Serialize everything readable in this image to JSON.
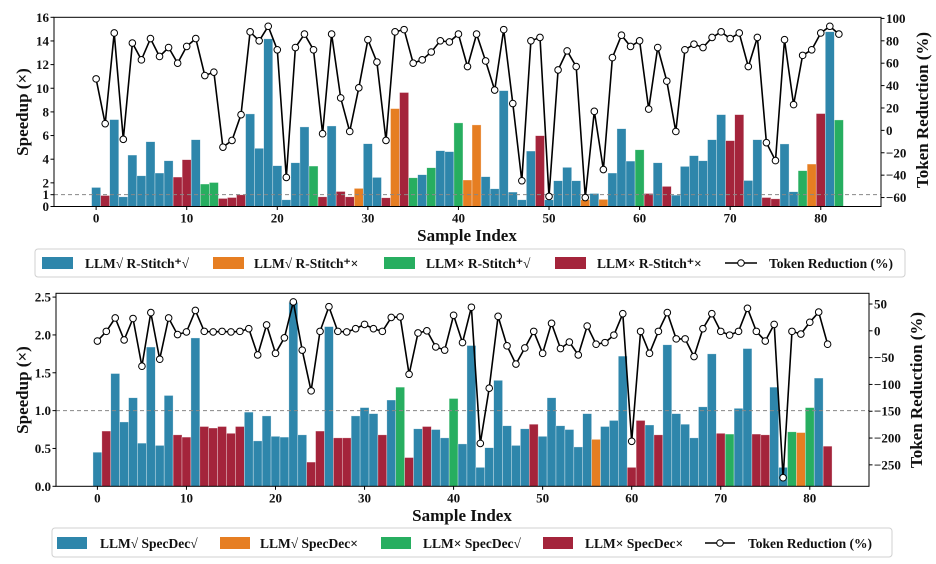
{
  "chart_data": [
    {
      "type": "bar",
      "xlabel": "Sample Index",
      "ylabel": "Speedup (×)",
      "y2label": "Token Reduction (%)",
      "xlim": [
        -4.65,
        86.65
      ],
      "ylim": [
        0,
        16
      ],
      "y2lim": [
        -68,
        101
      ],
      "xticks": [
        0,
        10,
        20,
        30,
        40,
        50,
        60,
        70,
        80
      ],
      "yticks": [
        0,
        1,
        2,
        4,
        6,
        8,
        10,
        12,
        14,
        16
      ],
      "y2ticks": [
        100,
        80,
        60,
        40,
        20,
        0,
        -20,
        -40,
        -60
      ],
      "reference_line": 1,
      "legend_placement": "below",
      "legend": [
        {
          "label": "LLM√ R-Stitch⁺√",
          "color": "#2e86ab"
        },
        {
          "label": "LLM√ R-Stitch⁺×",
          "color": "#e67e22"
        },
        {
          "label": "LLM× R-Stitch⁺√",
          "color": "#27ae60"
        },
        {
          "label": "LLM× R-Stitch⁺×",
          "color": "#a4243b"
        },
        {
          "label": "Token Reduction (%)",
          "color": "#000000"
        }
      ],
      "categories": [
        0,
        3,
        0,
        0,
        0,
        0,
        0,
        0,
        0,
        3,
        3,
        0,
        2,
        2,
        3,
        3,
        3,
        0,
        0,
        0,
        0,
        0,
        0,
        0,
        2,
        3,
        0,
        3,
        3,
        1,
        0,
        0,
        3,
        1,
        3,
        2,
        0,
        2,
        0,
        0,
        2,
        1,
        1,
        0,
        0,
        0,
        0,
        0,
        0,
        3,
        0,
        0,
        0,
        0,
        1,
        0,
        1,
        0,
        0,
        0,
        2,
        3,
        0,
        3,
        0,
        0,
        0,
        0,
        0,
        0,
        3,
        3,
        0,
        0,
        3,
        3,
        0,
        0,
        2,
        1,
        3,
        0,
        2
      ],
      "speedup": [
        1.61,
        0.93,
        7.35,
        0.82,
        4.35,
        2.6,
        5.48,
        2.83,
        3.87,
        2.49,
        3.96,
        5.65,
        1.9,
        2.03,
        0.68,
        0.76,
        0.99,
        7.83,
        4.92,
        14.18,
        3.45,
        0.57,
        3.7,
        6.73,
        3.42,
        0.82,
        6.81,
        1.27,
        0.82,
        1.53,
        5.31,
        2.46,
        0.74,
        8.28,
        9.64,
        2.43,
        2.69,
        3.28,
        4.72,
        4.64,
        7.07,
        2.24,
        6.9,
        2.52,
        1.5,
        9.8,
        1.22,
        0.57,
        4.69,
        5.99,
        0.57,
        2.18,
        3.31,
        2.18,
        0.57,
        1.1,
        0.6,
        2.83,
        6.58,
        3.84,
        4.8,
        1.1,
        3.7,
        1.7,
        0.96,
        3.39,
        4.3,
        3.87,
        5.65,
        7.77,
        5.57,
        7.77,
        2.2,
        5.65,
        0.76,
        0.65,
        5.29,
        1.25,
        3.03,
        3.59,
        7.86,
        14.78,
        7.32
      ],
      "token_reduction": [
        46,
        6,
        87,
        -8,
        78,
        63,
        82,
        66,
        74,
        60,
        75,
        82,
        49,
        52,
        -15,
        -9,
        14,
        88,
        80,
        93,
        72,
        -42,
        74,
        86,
        72,
        -3,
        86,
        29,
        -1,
        38,
        81,
        61,
        -9,
        88,
        90,
        60,
        63,
        70,
        80,
        79,
        86,
        57,
        86,
        62,
        36,
        90,
        24,
        -45,
        80,
        83,
        -59,
        54,
        71,
        57,
        -60,
        17,
        -35,
        65,
        85,
        75,
        80,
        19,
        74,
        44,
        -1,
        72,
        77,
        74,
        83,
        88,
        82,
        87,
        57,
        83,
        -11,
        -27,
        81,
        23,
        67,
        72,
        87,
        93,
        86
      ]
    },
    {
      "type": "bar",
      "xlabel": "Sample Index",
      "ylabel": "Speedup (×)",
      "y2label": "Token Reduction (%)",
      "xlim": [
        -4.65,
        86.65
      ],
      "ylim": [
        0,
        2.55
      ],
      "y2lim": [
        -290,
        70
      ],
      "xticks": [
        0,
        10,
        20,
        30,
        40,
        50,
        60,
        70,
        80
      ],
      "yticks": [
        "0.0",
        "0.5",
        "1.0",
        "1.5",
        "2.0",
        "2.5"
      ],
      "y2ticks": [
        50,
        0,
        -50,
        -100,
        -150,
        -200,
        -250
      ],
      "reference_line": 1,
      "legend_placement": "below",
      "legend": [
        {
          "label": "LLM√ SpecDec√",
          "color": "#2e86ab"
        },
        {
          "label": "LLM√ SpecDec×",
          "color": "#e67e22"
        },
        {
          "label": "LLM× SpecDec√",
          "color": "#27ae60"
        },
        {
          "label": "LLM× SpecDec×",
          "color": "#a4243b"
        },
        {
          "label": "Token Reduction (%)",
          "color": "#000000"
        }
      ],
      "categories": [
        0,
        3,
        0,
        0,
        0,
        0,
        0,
        0,
        0,
        3,
        3,
        0,
        3,
        3,
        3,
        3,
        3,
        0,
        0,
        0,
        0,
        0,
        0,
        0,
        3,
        3,
        0,
        3,
        3,
        0,
        0,
        0,
        3,
        0,
        2,
        3,
        0,
        3,
        0,
        0,
        2,
        0,
        0,
        0,
        0,
        0,
        0,
        0,
        0,
        3,
        0,
        0,
        0,
        0,
        0,
        0,
        1,
        0,
        0,
        0,
        3,
        3,
        0,
        3,
        0,
        0,
        0,
        0,
        0,
        0,
        3,
        2,
        0,
        0,
        3,
        3,
        0,
        0,
        2,
        1,
        2,
        0,
        3
      ],
      "speedup": [
        0.45,
        0.73,
        1.49,
        0.85,
        1.17,
        0.57,
        1.84,
        0.54,
        1.2,
        0.68,
        0.65,
        1.96,
        0.79,
        0.77,
        0.79,
        0.7,
        0.79,
        0.98,
        0.6,
        0.93,
        0.66,
        0.65,
        2.43,
        0.68,
        0.32,
        0.73,
        2.11,
        0.64,
        0.64,
        0.93,
        1.04,
        0.96,
        0.68,
        1.14,
        1.31,
        0.38,
        0.76,
        0.79,
        0.75,
        0.64,
        1.16,
        0.56,
        1.86,
        0.25,
        0.51,
        1.4,
        0.8,
        0.54,
        0.76,
        0.82,
        0.66,
        1.17,
        0.8,
        0.75,
        0.52,
        0.96,
        0.62,
        0.79,
        0.87,
        1.72,
        0.25,
        0.87,
        0.81,
        0.68,
        1.87,
        0.96,
        0.82,
        0.64,
        1.05,
        1.75,
        0.7,
        0.69,
        1.03,
        1.82,
        0.69,
        0.68,
        1.31,
        0.25,
        0.72,
        0.71,
        1.04,
        1.43,
        0.53
      ],
      "token_reduction": [
        -19,
        -1,
        24,
        -17,
        23,
        -66,
        34,
        -53,
        24,
        -7,
        -2,
        38,
        -1,
        -2,
        -1,
        -2,
        -1,
        4,
        -45,
        11,
        -42,
        -13,
        54,
        -36,
        -112,
        -1,
        45,
        -1,
        -2,
        4,
        12,
        4,
        -1,
        25,
        26,
        -81,
        -4,
        0,
        -30,
        -36,
        29,
        -22,
        44,
        -210,
        -107,
        27,
        -28,
        -62,
        -32,
        -1,
        -42,
        14,
        -33,
        -21,
        -45,
        9,
        -25,
        -22,
        -8,
        32,
        -206,
        -1,
        -42,
        -1,
        34,
        -15,
        -15,
        -48,
        4,
        32,
        -1,
        -8,
        -1,
        42,
        -1,
        -19,
        12,
        -274,
        -1,
        -6,
        16,
        35,
        -25
      ]
    }
  ]
}
